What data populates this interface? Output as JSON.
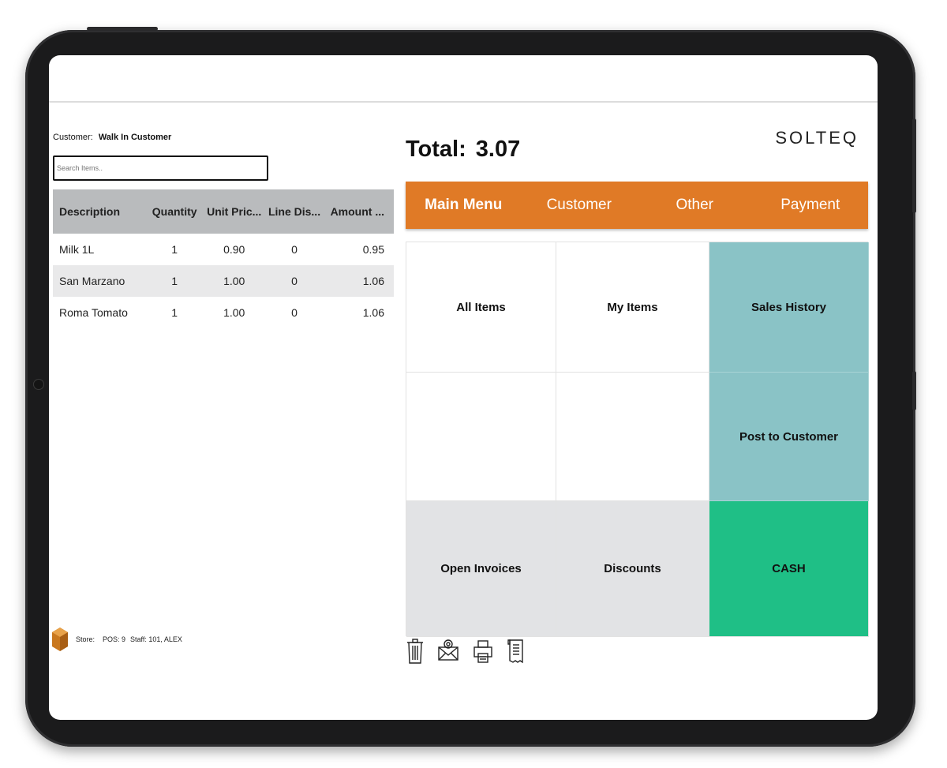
{
  "header": {
    "customer_label": "Customer:",
    "customer_name": "Walk In Customer",
    "search_placeholder": "Search Items..",
    "total_label": "Total:",
    "total_value": "3.07",
    "brand": "SOLTEQ"
  },
  "table": {
    "columns": [
      "Description",
      "Quantity",
      "Unit Pric...",
      "Line Dis...",
      "Amount ..."
    ],
    "rows": [
      {
        "description": "Milk 1L",
        "quantity": "1",
        "unit_price": "0.90",
        "line_discount": "0",
        "amount": "0.95"
      },
      {
        "description": "San Marzano",
        "quantity": "1",
        "unit_price": "1.00",
        "line_discount": "0",
        "amount": "1.06"
      },
      {
        "description": "Roma Tomato",
        "quantity": "1",
        "unit_price": "1.00",
        "line_discount": "0",
        "amount": "1.06"
      }
    ]
  },
  "tabs": [
    "Main Menu",
    "Customer",
    "Other",
    "Payment"
  ],
  "tiles": {
    "all_items": "All Items",
    "my_items": "My Items",
    "sales_history": "Sales History",
    "post_to_customer": "Post to Customer",
    "open_invoices": "Open Invoices",
    "discounts": "Discounts",
    "cash": "CASH"
  },
  "footer": {
    "store_label": "Store:",
    "pos": "POS:  9",
    "staff": "Staff:  101, ALEX"
  },
  "colors": {
    "accent_orange": "#e07a26",
    "teal": "#8ac3c6",
    "cash_green": "#1fbf86",
    "header_grey": "#b9bbbd"
  },
  "icons": [
    "trash-icon",
    "mail-icon",
    "printer-icon",
    "receipt-icon",
    "store-box-icon"
  ]
}
